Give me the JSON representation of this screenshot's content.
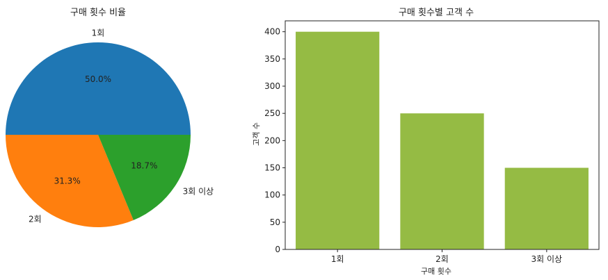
{
  "chart_data": [
    {
      "type": "pie",
      "title": "구매 횟수 비율",
      "labels": [
        "1회",
        "2회",
        "3회 이상"
      ],
      "values": [
        400,
        250,
        150
      ],
      "percent_labels": [
        "50.0%",
        "31.3%",
        "18.7%"
      ],
      "colors": [
        "#1f77b4",
        "#ff7f0e",
        "#2ca02c"
      ]
    },
    {
      "type": "bar",
      "title": "구매 횟수별 고객 수",
      "categories": [
        "1회",
        "2회",
        "3회 이상"
      ],
      "values": [
        400,
        250,
        150
      ],
      "xlabel": "구매 횟수",
      "ylabel": "고객 수",
      "ylim": [
        0,
        420
      ],
      "yticks": [
        0,
        50,
        100,
        150,
        200,
        250,
        300,
        350,
        400
      ],
      "bar_color": "#95bb44"
    }
  ]
}
